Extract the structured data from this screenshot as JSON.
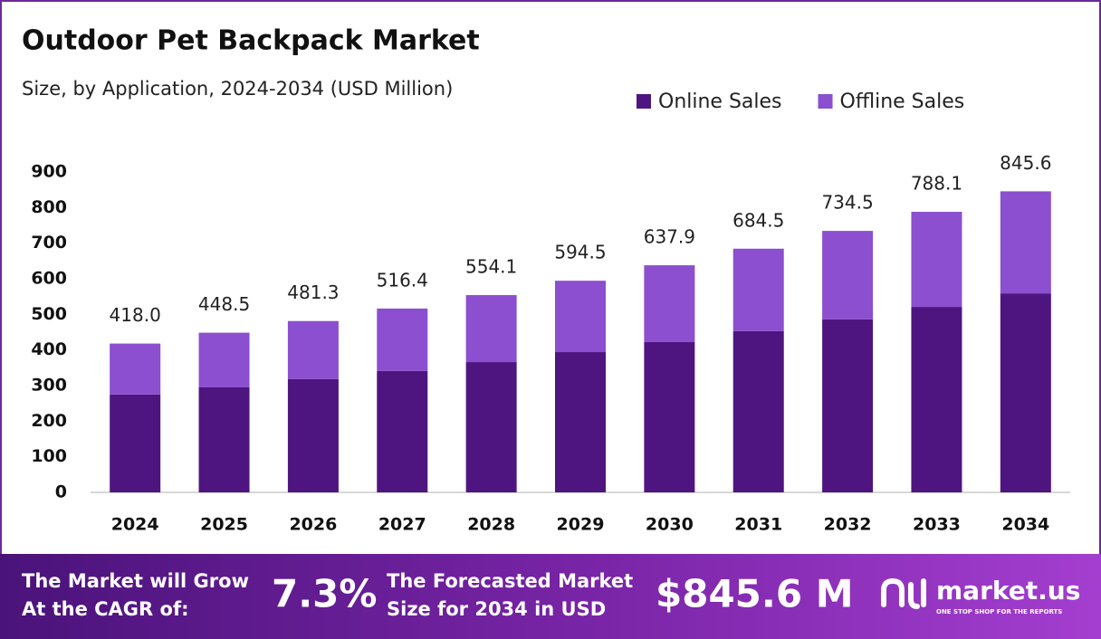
{
  "chart_data": {
    "type": "stacked_bar",
    "title": "Outdoor Pet Backpack Market",
    "subtitle": "Size, by Application, 2024-2034 (USD Million)",
    "categories": [
      "2024",
      "2025",
      "2026",
      "2027",
      "2028",
      "2029",
      "2030",
      "2031",
      "2032",
      "2033",
      "2034"
    ],
    "series": [
      {
        "name": "Online Sales",
        "color": "#4e1581",
        "values": [
          275,
          295,
          318,
          341,
          366,
          394,
          422,
          453,
          486,
          521,
          559
        ]
      },
      {
        "name": "Offline Sales",
        "color": "#8b4fcf",
        "values": [
          143,
          153.5,
          163.3,
          175.4,
          188.1,
          200.5,
          215.9,
          231.5,
          248.5,
          267.1,
          286.6
        ]
      }
    ],
    "totals": [
      418,
      448.5,
      481.3,
      516.4,
      554.1,
      594.5,
      637.9,
      684.5,
      734.5,
      788.1,
      845.6
    ],
    "total_labels": [
      "418.0",
      "448.5",
      "481.3",
      "516.4",
      "554.1",
      "594.5",
      "637.9",
      "684.5",
      "734.5",
      "788.1",
      "845.6"
    ],
    "ylim": [
      0,
      900
    ],
    "yticks": [
      0,
      100,
      200,
      300,
      400,
      500,
      600,
      700,
      800,
      900
    ],
    "grid": false,
    "legend": "top-right"
  },
  "footer": {
    "cagr_text": [
      "The Market will Grow",
      "At the CAGR of:"
    ],
    "cagr_value": "7.3%",
    "forecast_text": [
      "The Forecasted Market",
      "Size for 2034 in USD"
    ],
    "forecast_value": "$845.6 M",
    "brand": "market.us",
    "tagline": "ONE STOP SHOP FOR THE REPORTS"
  }
}
